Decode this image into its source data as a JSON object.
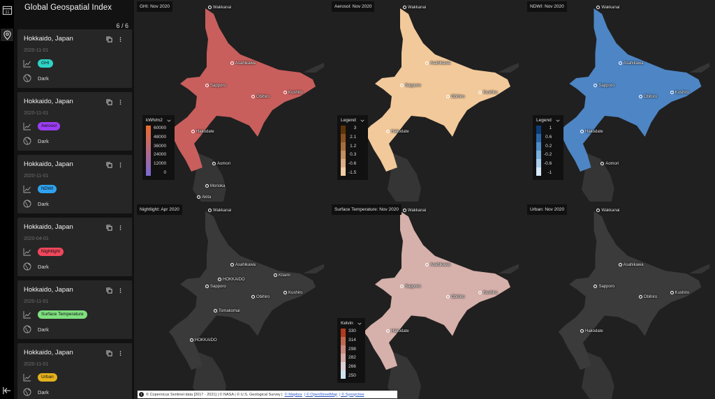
{
  "app": {
    "title": "Global Geospatial Index",
    "count": "6 / 6"
  },
  "rail": {
    "icons": [
      "calendar-icon",
      "map-pin-icon",
      "collapse-icon"
    ]
  },
  "cards": [
    {
      "title": "Hokkaido, Japan",
      "date": "2020-11-01",
      "layer": "GHI",
      "layer_color": "#2ed3c6",
      "theme": "Dark"
    },
    {
      "title": "Hokkaido, Japan",
      "date": "2020-11-01",
      "layer": "Aerosol",
      "layer_color": "#9b3df5",
      "theme": "Dark"
    },
    {
      "title": "Hokkaido, Japan",
      "date": "2020-11-01",
      "layer": "NDWI",
      "layer_color": "#2fa2f0",
      "theme": "Dark"
    },
    {
      "title": "Hokkaido, Japan",
      "date": "2020-04-01",
      "layer": "Nightlight",
      "layer_color": "#f0475c",
      "theme": "Dark"
    },
    {
      "title": "Hokkaido, Japan",
      "date": "2020-11-01",
      "layer": "Surface Temperature",
      "layer_color": "#7fe07f",
      "theme": "Dark"
    },
    {
      "title": "Hokkaido, Japan",
      "date": "2020-11-01",
      "layer": "Urban",
      "layer_color": "#e5b21d",
      "theme": "Dark"
    }
  ],
  "panels": [
    {
      "label": "GHI: Nov 2020",
      "land_color": "#c85f5d",
      "legend": {
        "title": "kWh/m2",
        "type": "continuous",
        "ticks": [
          "60000",
          "48000",
          "36000",
          "24000",
          "12000",
          "0"
        ],
        "colors": [
          "#ee6a2c",
          "#7a6ad8"
        ]
      },
      "places": [
        "Wakkanai",
        "Asahikawa",
        "Sapporo",
        "Obihiro",
        "Kushiro",
        "Hakodate",
        "Aomori",
        "Morioka",
        "Akita"
      ]
    },
    {
      "label": "Aerosol: Nov 2020",
      "land_color": "#f2c99a",
      "legend": {
        "title": "Legend",
        "type": "steps",
        "ticks": [
          "3",
          "2.1",
          "1.2",
          "0.3",
          "-0.6",
          "-1.5"
        ],
        "colors": [
          "#5e3406",
          "#8a5120",
          "#a86d3c",
          "#c48e5f",
          "#dcae84",
          "#f1cda4"
        ]
      },
      "places": [
        "Wakkanai",
        "Asahikawa",
        "Sapporo",
        "Obihiro",
        "Kushiro",
        "Hakodate"
      ]
    },
    {
      "label": "NDWI: Nov 2020",
      "land_color": "#4e85c4",
      "legend": {
        "title": "Legend",
        "type": "steps",
        "ticks": [
          "1",
          "0.6",
          "0.2",
          "-0.2",
          "-0.6",
          "-1"
        ],
        "colors": [
          "#0b3d77",
          "#2a65a8",
          "#4f8cc8",
          "#7aaedb",
          "#a9cdec",
          "#d8e9f7"
        ]
      },
      "places": [
        "Wakkanai",
        "Asahikawa",
        "Sapporo",
        "Obihiro",
        "Kushiro",
        "Hakodate",
        "Aomori"
      ]
    },
    {
      "label": "Nightlight: Apr 2020",
      "land_color": "#3a3a3a",
      "places": [
        "Wakkanai",
        "Asahikawa",
        "Kitami",
        "HOKKAIDO",
        "Sapporo",
        "Obihiro",
        "Kushiro",
        "Tomakomai",
        "HOKKAIDO"
      ]
    },
    {
      "label": "Surface Temperature: Nov 2020",
      "land_color": "#d6b0aa",
      "legend": {
        "title": "Kelvin",
        "type": "steps",
        "ticks": [
          "330",
          "314",
          "298",
          "282",
          "266",
          "250"
        ],
        "colors": [
          "#b23a1c",
          "#c0684f",
          "#c98a7d",
          "#d4aba5",
          "#dcd0d4",
          "#cfe3ef"
        ]
      },
      "places": [
        "Wakkanai",
        "Asahikawa",
        "Sapporo",
        "Obihiro",
        "Kushiro",
        "Hakodate"
      ]
    },
    {
      "label": "Urban: Nov 2020",
      "land_color": "#3b3b3b",
      "places": [
        "Wakkanai",
        "Asahikawa",
        "Sapporo",
        "Obihiro",
        "Kushiro",
        "Hakodate"
      ]
    }
  ],
  "attribution": {
    "plain": "© Copernicus Sentinel data [2017 - 2021] | © NASA | © U.S. Geological Survey |",
    "links": [
      "© Mapbox",
      "| © OpenStreetMap",
      "| © Synopctive"
    ]
  }
}
